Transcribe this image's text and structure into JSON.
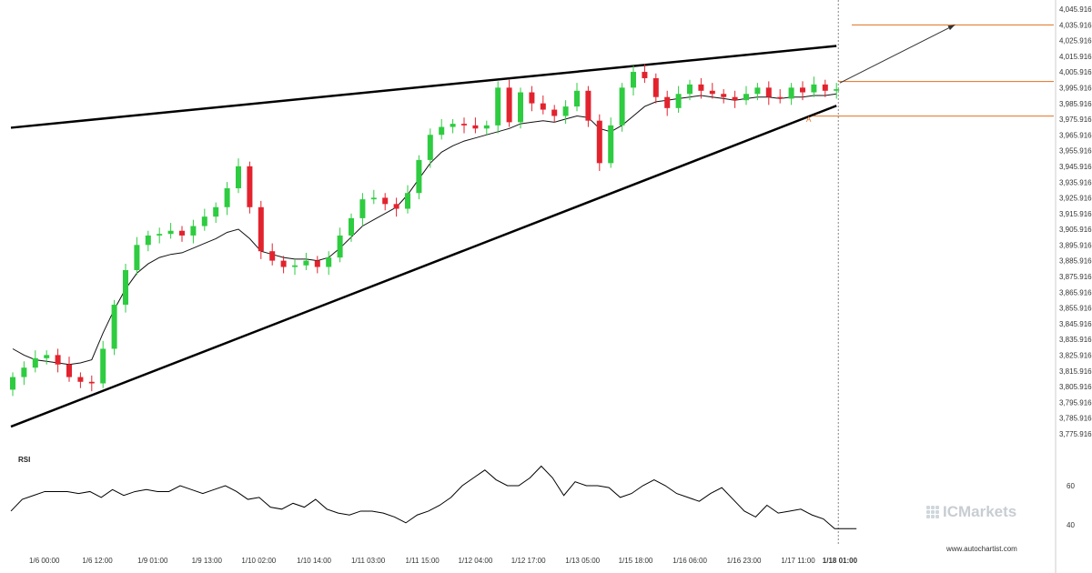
{
  "chart_data": [
    {
      "type": "candlestick",
      "title": "",
      "x_tick_labels": [
        "1/6 00:00",
        "1/6 12:00",
        "1/9 01:00",
        "1/9 13:00",
        "1/10 02:00",
        "1/10 14:00",
        "1/11 03:00",
        "1/11 15:00",
        "1/12 04:00",
        "1/12 17:00",
        "1/13 05:00",
        "1/15 18:00",
        "1/16 06:00",
        "1/16 23:00",
        "1/17 11:00",
        "1/18 01:00"
      ],
      "y_tick_labels": [
        "4,045.9168",
        "4,035.9168",
        "4,025.9168",
        "4,015.9168",
        "4,005.9168",
        "3,995.9168",
        "3,985.9168",
        "3,975.9168",
        "3,965.9168",
        "3,955.9168",
        "3,945.9168",
        "3,935.9168",
        "3,925.9168",
        "3,915.9168",
        "3,905.9168",
        "3,895.9168",
        "3,885.9168",
        "3,875.9168",
        "3,865.9168",
        "3,855.9168",
        "3,845.9168",
        "3,835.9168",
        "3,825.9168",
        "3,815.9168",
        "3,805.9168",
        "3,795.9168",
        "3,785.9168",
        "3,775.9168"
      ],
      "ylim": [
        3775.9168,
        4045.9168
      ],
      "grid": false,
      "close_series": [
        3812,
        3818,
        3824,
        3826,
        3820,
        3812,
        3809,
        3808,
        3830,
        3858,
        3880,
        3896,
        3902,
        3903,
        3905,
        3902,
        3908,
        3914,
        3920,
        3932,
        3946,
        3920,
        3892,
        3886,
        3882,
        3883,
        3886,
        3882,
        3888,
        3902,
        3913,
        3925,
        3926,
        3922,
        3919,
        3929,
        3950,
        3966,
        3971,
        3973,
        3972,
        3970,
        3972,
        3996,
        3974,
        3993,
        3986,
        3982,
        3978,
        3984,
        3994,
        3975,
        3948,
        3972,
        3996,
        4006,
        4002,
        3990,
        3983,
        3992,
        3998,
        3994,
        3992,
        3990,
        3988,
        3992,
        3996,
        3990,
        3989,
        3996,
        3993,
        3998,
        3994,
        3995
      ],
      "ma_series": [
        3830,
        3826,
        3823,
        3822,
        3821,
        3820,
        3821,
        3823,
        3840,
        3855,
        3868,
        3878,
        3884,
        3888,
        3890,
        3891,
        3894,
        3897,
        3900,
        3904,
        3906,
        3900,
        3892,
        3890,
        3888,
        3887,
        3887,
        3886,
        3888,
        3894,
        3901,
        3908,
        3912,
        3916,
        3920,
        3928,
        3938,
        3948,
        3955,
        3959,
        3962,
        3964,
        3966,
        3968,
        3970,
        3973,
        3974,
        3975,
        3974,
        3976,
        3978,
        3977,
        3970,
        3968,
        3972,
        3978,
        3984,
        3987,
        3988,
        3989,
        3990,
        3991,
        3990,
        3989,
        3988,
        3989,
        3990,
        3990,
        3989,
        3990,
        3990,
        3991,
        3991,
        3992
      ],
      "annotations": {
        "upper_trendline": [
          [
            0,
            3970.5
          ],
          [
            73,
            4022.5
          ]
        ],
        "lower_trendline": [
          [
            0,
            3780.5
          ],
          [
            73,
            3984.5
          ]
        ],
        "forecast_arrow": {
          "from": [
            73.3,
            3999
          ],
          "to": [
            83.5,
            4035.9
          ]
        },
        "target_level": 4035.9,
        "resistance_level": 3999.9,
        "support_level": 3977.9,
        "point_label": "A",
        "current_bar_index": 73
      },
      "legend": "none"
    },
    {
      "type": "line",
      "title": "RSI",
      "y_tick_labels": [
        "60",
        "40"
      ],
      "ylim": [
        34,
        72
      ],
      "series": [
        {
          "values": [
            47,
            53,
            55,
            57,
            57,
            57,
            56,
            57,
            54,
            58,
            55,
            57,
            58,
            57,
            57,
            60,
            58,
            56,
            58,
            60,
            57,
            53,
            54,
            49,
            48,
            51,
            49,
            53,
            48,
            46,
            45,
            47,
            47,
            46,
            44,
            41,
            45,
            47,
            50,
            54,
            60,
            64,
            68,
            63,
            60,
            60,
            64,
            70,
            64,
            55,
            62,
            60,
            60,
            59,
            54,
            56,
            60,
            63,
            60,
            56,
            54,
            52,
            56,
            59,
            53,
            47,
            44,
            50,
            46,
            47,
            48,
            45,
            43,
            38
          ]
        }
      ]
    }
  ],
  "watermark": {
    "brand": "ICMarkets"
  },
  "footer": {
    "credit": "www.autochartist.com"
  },
  "colors": {
    "up": "#2ecc40",
    "down": "#e2232e",
    "trend": "#000000",
    "level": "#e07020",
    "forecast": "#333333"
  }
}
